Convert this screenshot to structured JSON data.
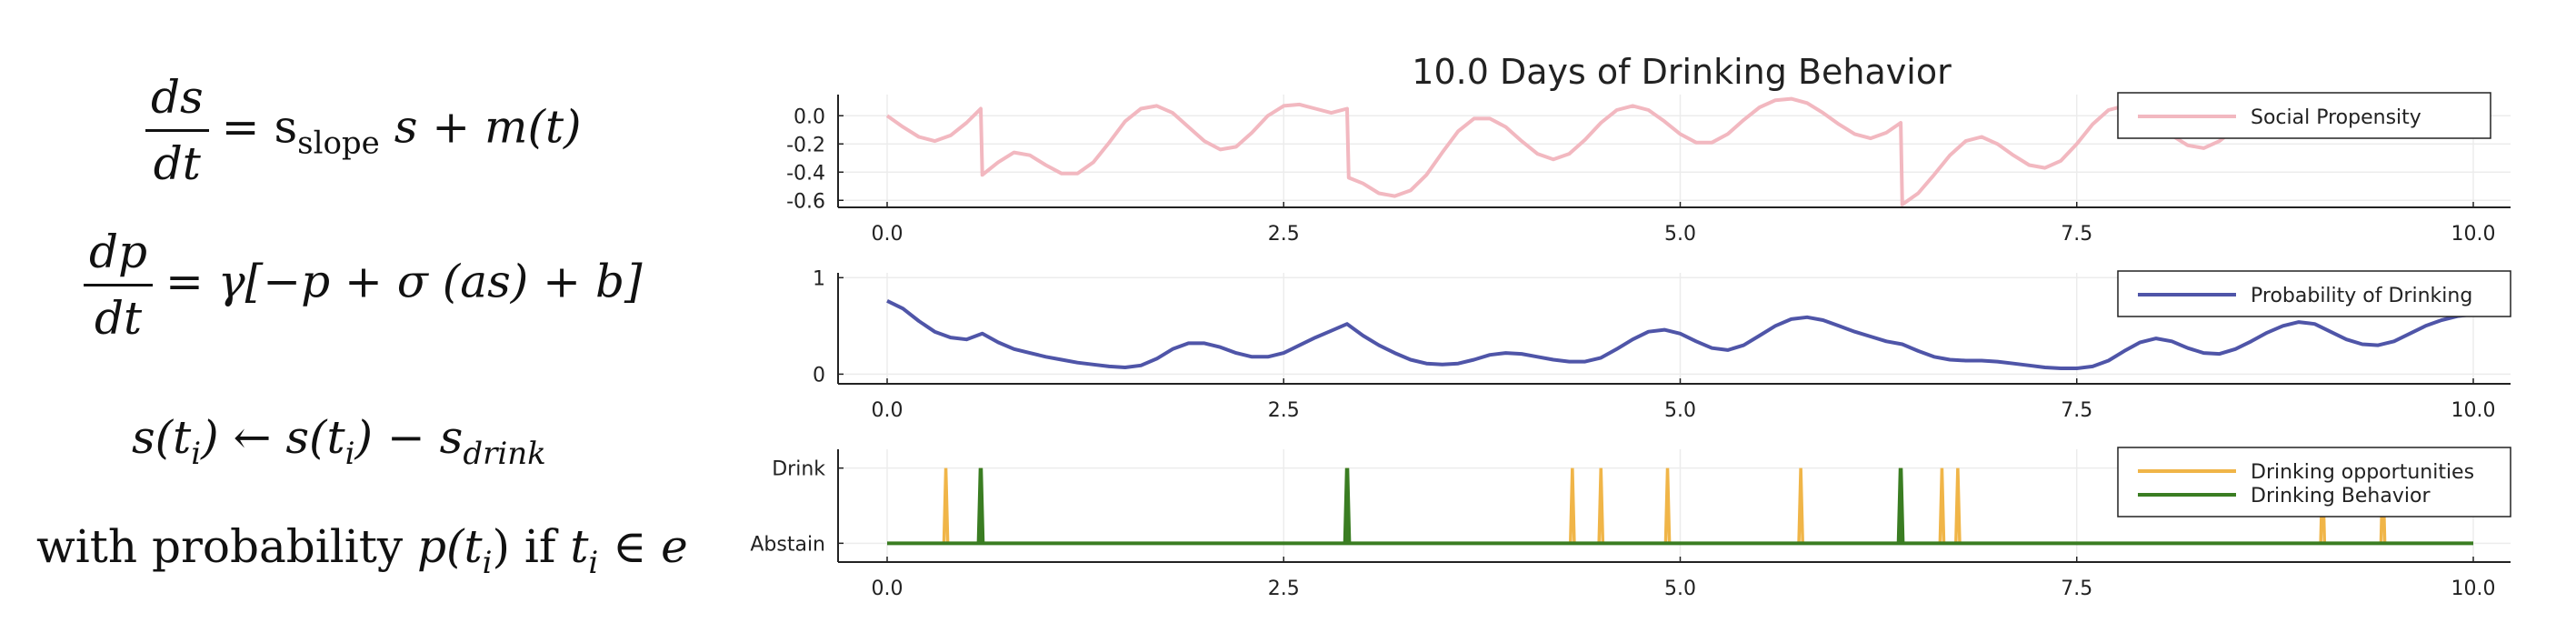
{
  "equations": {
    "eq1": {
      "num": "ds",
      "den": "dt",
      "rhs_a": "= s",
      "rhs_sub": "slope",
      "rhs_b": " s + m(t)"
    },
    "eq2": {
      "num": "dp",
      "den": "dt",
      "rhs": "= γ[−p + σ (as) + b]"
    },
    "eq3": {
      "lhs": "s(t",
      "lhs_sub": "i",
      "mid": ") ← s(t",
      "mid_sub": "i",
      "rhs": ") − s",
      "rhs_sub": "drink"
    },
    "eq4": {
      "pre": "with probability ",
      "p": "p(t",
      "p_sub": "i",
      "post": ") if ",
      "t": "t",
      "t_sub": "i",
      "tail": " ∈ e"
    }
  },
  "chart_data": [
    {
      "type": "line",
      "title": "10.0 Days of Drinking Behavior",
      "xlim": [
        0,
        10
      ],
      "ylim": [
        -0.65,
        0.15
      ],
      "xticks": [
        "0.0",
        "2.5",
        "5.0",
        "7.5",
        "10.0"
      ],
      "xtick_values": [
        0,
        2.5,
        5,
        7.5,
        10
      ],
      "yticks": [
        "0.0",
        "-0.2",
        "-0.4",
        "-0.6"
      ],
      "ytick_values": [
        0,
        -0.2,
        -0.4,
        -0.6
      ],
      "grid": true,
      "legend_position": "top-right",
      "series": [
        {
          "name": "Social Propensity",
          "color": "#f2b8c0",
          "x": [
            0,
            0.1,
            0.2,
            0.3,
            0.4,
            0.5,
            0.59,
            0.6,
            0.7,
            0.8,
            0.9,
            1.0,
            1.1,
            1.2,
            1.3,
            1.4,
            1.5,
            1.6,
            1.7,
            1.8,
            1.9,
            2.0,
            2.1,
            2.2,
            2.3,
            2.4,
            2.5,
            2.6,
            2.7,
            2.8,
            2.9,
            2.91,
            3.0,
            3.1,
            3.2,
            3.3,
            3.4,
            3.5,
            3.6,
            3.7,
            3.8,
            3.9,
            4.0,
            4.1,
            4.2,
            4.3,
            4.4,
            4.5,
            4.6,
            4.7,
            4.8,
            4.9,
            5.0,
            5.1,
            5.2,
            5.3,
            5.4,
            5.5,
            5.6,
            5.7,
            5.8,
            5.9,
            6.0,
            6.1,
            6.2,
            6.3,
            6.39,
            6.4,
            6.5,
            6.6,
            6.7,
            6.8,
            6.9,
            7.0,
            7.1,
            7.2,
            7.3,
            7.4,
            7.5,
            7.6,
            7.7,
            7.8,
            7.9,
            8.0,
            8.1,
            8.2,
            8.3,
            8.4,
            8.5,
            8.6,
            8.7,
            8.8,
            8.9,
            9.0,
            9.1,
            9.2,
            9.3
          ],
          "y": [
            0.0,
            -0.08,
            -0.15,
            -0.18,
            -0.14,
            -0.05,
            0.05,
            -0.42,
            -0.33,
            -0.26,
            -0.28,
            -0.35,
            -0.41,
            -0.41,
            -0.33,
            -0.19,
            -0.04,
            0.05,
            0.07,
            0.02,
            -0.08,
            -0.18,
            -0.24,
            -0.22,
            -0.12,
            0.0,
            0.07,
            0.08,
            0.05,
            0.02,
            0.05,
            -0.44,
            -0.48,
            -0.55,
            -0.57,
            -0.53,
            -0.42,
            -0.26,
            -0.11,
            -0.02,
            -0.02,
            -0.08,
            -0.18,
            -0.27,
            -0.31,
            -0.27,
            -0.17,
            -0.05,
            0.04,
            0.07,
            0.04,
            -0.04,
            -0.13,
            -0.19,
            -0.19,
            -0.13,
            -0.03,
            0.06,
            0.11,
            0.12,
            0.09,
            0.02,
            -0.06,
            -0.13,
            -0.16,
            -0.12,
            -0.05,
            -0.63,
            -0.55,
            -0.42,
            -0.28,
            -0.18,
            -0.15,
            -0.2,
            -0.28,
            -0.35,
            -0.37,
            -0.32,
            -0.2,
            -0.06,
            0.04,
            0.07,
            0.04,
            -0.04,
            -0.14,
            -0.21,
            -0.23,
            -0.18,
            -0.09,
            0.01,
            0.06,
            0.06,
            0.02,
            -0.05,
            -0.12,
            -0.15,
            -0.13
          ]
        }
      ]
    },
    {
      "type": "line",
      "xlim": [
        0,
        10
      ],
      "ylim": [
        -0.1,
        1.05
      ],
      "xticks": [
        "0.0",
        "2.5",
        "5.0",
        "7.5",
        "10.0"
      ],
      "xtick_values": [
        0,
        2.5,
        5,
        7.5,
        10
      ],
      "yticks": [
        "1",
        "0"
      ],
      "ytick_values": [
        1,
        0
      ],
      "grid": true,
      "legend_position": "top-right",
      "series": [
        {
          "name": "Probability of Drinking",
          "color": "#4f55a8",
          "x": [
            0,
            0.1,
            0.2,
            0.3,
            0.4,
            0.5,
            0.6,
            0.7,
            0.8,
            0.9,
            1.0,
            1.1,
            1.2,
            1.3,
            1.4,
            1.5,
            1.6,
            1.7,
            1.8,
            1.9,
            2.0,
            2.1,
            2.2,
            2.3,
            2.4,
            2.5,
            2.6,
            2.7,
            2.8,
            2.9,
            3.0,
            3.1,
            3.2,
            3.3,
            3.4,
            3.5,
            3.6,
            3.7,
            3.8,
            3.9,
            4.0,
            4.1,
            4.2,
            4.3,
            4.4,
            4.5,
            4.6,
            4.7,
            4.8,
            4.9,
            5.0,
            5.1,
            5.2,
            5.3,
            5.4,
            5.5,
            5.6,
            5.7,
            5.8,
            5.9,
            6.0,
            6.1,
            6.2,
            6.3,
            6.4,
            6.5,
            6.6,
            6.7,
            6.8,
            6.9,
            7.0,
            7.1,
            7.2,
            7.3,
            7.4,
            7.5,
            7.6,
            7.7,
            7.8,
            7.9,
            8.0,
            8.1,
            8.2,
            8.3,
            8.4,
            8.5,
            8.6,
            8.7,
            8.8,
            8.9,
            9.0,
            9.1,
            9.2,
            9.3,
            9.4,
            9.5,
            9.6,
            9.7,
            9.8,
            9.9,
            10.0
          ],
          "y": [
            0.76,
            0.68,
            0.55,
            0.44,
            0.38,
            0.36,
            0.42,
            0.33,
            0.26,
            0.22,
            0.18,
            0.15,
            0.12,
            0.1,
            0.08,
            0.07,
            0.09,
            0.16,
            0.26,
            0.32,
            0.32,
            0.28,
            0.22,
            0.18,
            0.18,
            0.22,
            0.3,
            0.38,
            0.45,
            0.52,
            0.4,
            0.3,
            0.22,
            0.15,
            0.11,
            0.1,
            0.11,
            0.15,
            0.2,
            0.22,
            0.21,
            0.18,
            0.15,
            0.13,
            0.13,
            0.17,
            0.26,
            0.36,
            0.44,
            0.46,
            0.42,
            0.34,
            0.27,
            0.25,
            0.3,
            0.4,
            0.5,
            0.57,
            0.59,
            0.56,
            0.5,
            0.44,
            0.39,
            0.34,
            0.31,
            0.24,
            0.18,
            0.15,
            0.14,
            0.14,
            0.13,
            0.11,
            0.09,
            0.07,
            0.06,
            0.06,
            0.08,
            0.14,
            0.24,
            0.33,
            0.37,
            0.34,
            0.27,
            0.22,
            0.21,
            0.26,
            0.34,
            0.43,
            0.5,
            0.54,
            0.52,
            0.44,
            0.36,
            0.31,
            0.3,
            0.34,
            0.42,
            0.5,
            0.56,
            0.6,
            0.62
          ]
        }
      ]
    },
    {
      "type": "line",
      "xlim": [
        0,
        10
      ],
      "ylim": [
        -0.25,
        1.25
      ],
      "xticks": [
        "0.0",
        "2.5",
        "5.0",
        "7.5",
        "10.0"
      ],
      "xtick_values": [
        0,
        2.5,
        5,
        7.5,
        10
      ],
      "yticks": [
        "Drink",
        "Abstain"
      ],
      "ytick_values": [
        1,
        0
      ],
      "grid": true,
      "legend_position": "top-right",
      "series": [
        {
          "name": "Drinking opportunities",
          "color": "#f0b548",
          "spikes_at": [
            0.37,
            0.59,
            2.9,
            4.32,
            4.5,
            4.92,
            5.76,
            6.39,
            6.65,
            6.75,
            9.05,
            9.43
          ]
        },
        {
          "name": "Drinking Behavior",
          "color": "#3a7d22",
          "spikes_at": [
            0.59,
            2.9,
            6.39
          ]
        }
      ]
    }
  ]
}
